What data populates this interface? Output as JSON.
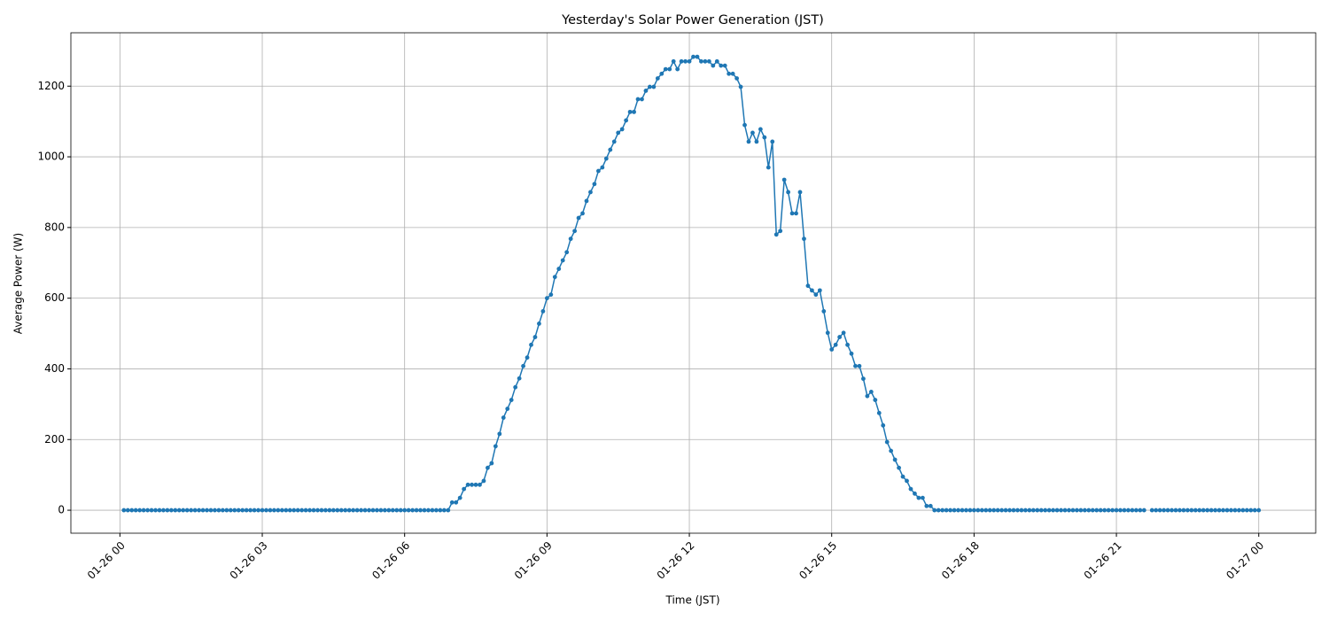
{
  "chart_data": {
    "type": "line",
    "title": "Yesterday's Solar Power Generation (JST)",
    "x_label": "Time (JST)",
    "y_label": "Average Power (W)",
    "x": [
      5,
      10,
      15,
      20,
      25,
      30,
      35,
      40,
      45,
      50,
      55,
      60,
      65,
      70,
      75,
      80,
      85,
      90,
      95,
      100,
      105,
      110,
      115,
      120,
      125,
      130,
      135,
      140,
      145,
      150,
      155,
      160,
      165,
      170,
      175,
      180,
      185,
      190,
      195,
      200,
      205,
      210,
      215,
      220,
      225,
      230,
      235,
      240,
      245,
      250,
      255,
      260,
      265,
      270,
      275,
      280,
      285,
      290,
      295,
      300,
      305,
      310,
      315,
      320,
      325,
      330,
      335,
      340,
      345,
      350,
      355,
      360,
      365,
      370,
      375,
      380,
      385,
      390,
      395,
      400,
      405,
      410,
      415,
      420,
      425,
      430,
      435,
      440,
      445,
      450,
      455,
      460,
      465,
      470,
      475,
      480,
      485,
      490,
      495,
      500,
      505,
      510,
      515,
      520,
      525,
      530,
      535,
      540,
      545,
      550,
      555,
      560,
      565,
      570,
      575,
      580,
      585,
      590,
      595,
      600,
      605,
      610,
      615,
      620,
      625,
      630,
      635,
      640,
      645,
      650,
      655,
      660,
      665,
      670,
      675,
      680,
      685,
      690,
      695,
      700,
      705,
      710,
      715,
      720,
      725,
      730,
      735,
      740,
      745,
      750,
      755,
      760,
      765,
      770,
      775,
      780,
      785,
      790,
      795,
      800,
      805,
      810,
      815,
      820,
      825,
      830,
      835,
      840,
      845,
      850,
      855,
      860,
      865,
      870,
      875,
      880,
      885,
      890,
      895,
      900,
      905,
      910,
      915,
      920,
      925,
      930,
      935,
      940,
      945,
      950,
      955,
      960,
      965,
      970,
      975,
      980,
      985,
      990,
      995,
      1000,
      1005,
      1010,
      1015,
      1020,
      1025,
      1030,
      1035,
      1040,
      1045,
      1050,
      1055,
      1060,
      1065,
      1070,
      1075,
      1080,
      1085,
      1090,
      1095,
      1100,
      1105,
      1110,
      1115,
      1120,
      1125,
      1130,
      1135,
      1140,
      1145,
      1150,
      1155,
      1160,
      1165,
      1170,
      1175,
      1180,
      1185,
      1190,
      1195,
      1200,
      1205,
      1210,
      1215,
      1220,
      1225,
      1230,
      1235,
      1240,
      1245,
      1250,
      1255,
      1260,
      1265,
      1270,
      1275,
      1280,
      1285,
      1290,
      1295,
      1300,
      1305,
      1310,
      1315,
      1320,
      1325,
      1330,
      1335,
      1340,
      1345,
      1350,
      1355,
      1360,
      1365,
      1370,
      1375,
      1380,
      1385,
      1390,
      1395,
      1400,
      1405,
      1410,
      1415,
      1420,
      1425,
      1430,
      1435,
      1440
    ],
    "series": [
      {
        "color": "#1f77b4",
        "values": [
          0,
          0,
          0,
          0,
          0,
          0,
          0,
          0,
          0,
          0,
          0,
          0,
          0,
          0,
          0,
          0,
          0,
          0,
          0,
          0,
          0,
          0,
          0,
          0,
          0,
          0,
          0,
          0,
          0,
          0,
          0,
          0,
          0,
          0,
          0,
          0,
          0,
          0,
          0,
          0,
          0,
          0,
          0,
          0,
          0,
          0,
          0,
          0,
          0,
          0,
          0,
          0,
          0,
          0,
          0,
          0,
          0,
          0,
          0,
          0,
          0,
          0,
          0,
          0,
          0,
          0,
          0,
          0,
          0,
          0,
          0,
          0,
          0,
          0,
          0,
          0,
          0,
          0,
          0,
          0,
          0,
          0,
          0,
          22,
          22,
          35,
          60,
          72,
          72,
          72,
          72,
          83,
          120,
          133,
          181,
          216,
          262,
          287,
          312,
          348,
          373,
          408,
          432,
          468,
          490,
          528,
          563,
          600,
          610,
          660,
          683,
          707,
          730,
          768,
          790,
          827,
          840,
          875,
          900,
          923,
          960,
          970,
          995,
          1020,
          1043,
          1068,
          1078,
          1103,
          1127,
          1127,
          1163,
          1163,
          1187,
          1198,
          1198,
          1222,
          1235,
          1248,
          1248,
          1270,
          1248,
          1270,
          1270,
          1270,
          1283,
          1283,
          1270,
          1270,
          1270,
          1258,
          1270,
          1258,
          1258,
          1235,
          1235,
          1222,
          1198,
          1090,
          1043,
          1068,
          1043,
          1078,
          1055,
          970,
          1043,
          780,
          790,
          935,
          900,
          840,
          840,
          900,
          768,
          635,
          622,
          610,
          622,
          563,
          502,
          455,
          468,
          490,
          502,
          468,
          443,
          408,
          408,
          372,
          323,
          335,
          312,
          275,
          240,
          193,
          168,
          143,
          120,
          95,
          83,
          60,
          47,
          35,
          35,
          12,
          12,
          0,
          0,
          0,
          0,
          0,
          0,
          0,
          0,
          0,
          0,
          0,
          0,
          0,
          0,
          0,
          0,
          0,
          0,
          0,
          0,
          0,
          0,
          0,
          0,
          0,
          0,
          0,
          0,
          0,
          0,
          0,
          0,
          0,
          0,
          0,
          0,
          0,
          0,
          0,
          0,
          0,
          0,
          0,
          0,
          0,
          0,
          0,
          0,
          0,
          0,
          0,
          0,
          0,
          0,
          null,
          0,
          0,
          0,
          0,
          0,
          0,
          0,
          0,
          0,
          0,
          0,
          0,
          0,
          0,
          0,
          0,
          0,
          0,
          0,
          0,
          0,
          0,
          0,
          0,
          0,
          0,
          0,
          0
        ]
      }
    ],
    "xlim": [
      -62,
      1512
    ],
    "xticks": [
      {
        "value": 0,
        "label": "01-26 00"
      },
      {
        "value": 180,
        "label": "01-26 03"
      },
      {
        "value": 360,
        "label": "01-26 06"
      },
      {
        "value": 540,
        "label": "01-26 09"
      },
      {
        "value": 720,
        "label": "01-26 12"
      },
      {
        "value": 900,
        "label": "01-26 15"
      },
      {
        "value": 1080,
        "label": "01-26 18"
      },
      {
        "value": 1260,
        "label": "01-26 21"
      },
      {
        "value": 1440,
        "label": "01-27 00"
      }
    ],
    "ylim": [
      -65,
      1351
    ],
    "yticks": [
      0,
      200,
      400,
      600,
      800,
      1000,
      1200
    ],
    "grid": true
  }
}
